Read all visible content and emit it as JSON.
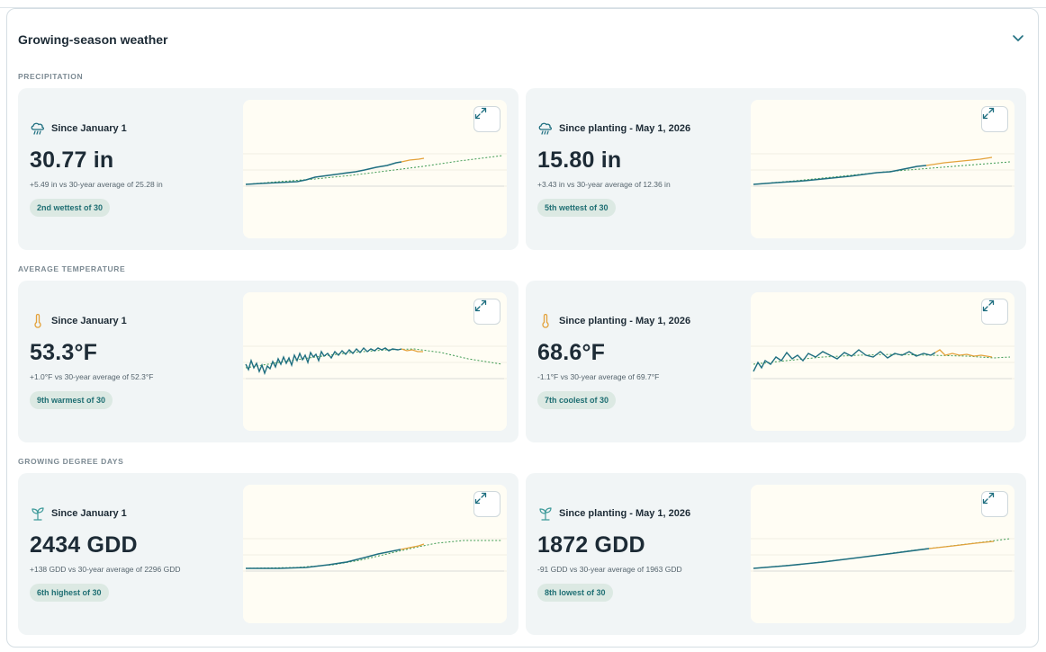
{
  "panel": {
    "title": "Growing-season weather"
  },
  "icons": {
    "collapse": "chevron-down-icon",
    "expand": "expand-icon",
    "precip": "rain-cloud-icon",
    "temp": "thermometer-icon",
    "gdd": "seedling-icon"
  },
  "colors": {
    "observed": "#1f6f80",
    "forecast": "#e3a23b",
    "average": "#3e9a52",
    "badge_bg": "#dce9e3",
    "badge_text": "#1f6f73",
    "card_bg": "#f1f5f6",
    "chart_bg": "#fffdf4"
  },
  "sections": [
    {
      "label": "PRECIPITATION",
      "cards": [
        {
          "title": "Since January 1",
          "value": "30.77 in",
          "comparison": "+5.49 in vs 30-year average of 25.28 in",
          "badge": "2nd wettest of 30"
        },
        {
          "title": "Since planting - May 1, 2026",
          "value": "15.80 in",
          "comparison": "+3.43 in vs 30-year average of 12.36 in",
          "badge": "5th wettest of 30"
        }
      ]
    },
    {
      "label": "AVERAGE TEMPERATURE",
      "cards": [
        {
          "title": "Since January 1",
          "value": "53.3°F",
          "comparison": "+1.0°F vs 30-year average of 52.3°F",
          "badge": "9th warmest of 30"
        },
        {
          "title": "Since planting - May 1, 2026",
          "value": "68.6°F",
          "comparison": "-1.1°F vs 30-year average of 69.7°F",
          "badge": "7th coolest of 30"
        }
      ]
    },
    {
      "label": "GROWING DEGREE DAYS",
      "cards": [
        {
          "title": "Since January 1",
          "value": "2434 GDD",
          "comparison": "+138 GDD vs 30-year average of 2296 GDD",
          "badge": "6th highest of 30"
        },
        {
          "title": "Since planting - May 1, 2026",
          "value": "1872 GDD",
          "comparison": "-91 GDD vs 30-year average of 1963 GDD",
          "badge": "8th lowest of 30"
        }
      ]
    }
  ]
}
